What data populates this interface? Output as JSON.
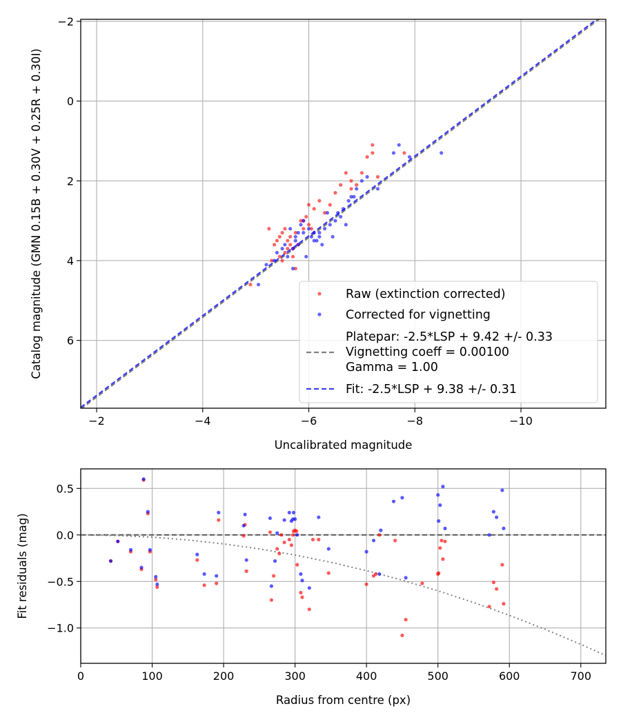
{
  "chart_data": [
    {
      "type": "scatter",
      "xlabel": "Uncalibrated magnitude",
      "ylabel": "Catalog magnitude (GMN 0.15B + 0.30V + 0.25R + 0.30I)",
      "xlim": [
        -1.7,
        -11.6
      ],
      "ylim": [
        7.7,
        -2.05
      ],
      "x_inverted": true,
      "y_inverted": true,
      "xticks": [
        -2,
        -4,
        -6,
        -8,
        -10
      ],
      "yticks": [
        -2,
        0,
        2,
        4,
        6
      ],
      "grid": true,
      "legend_position": "lower-right",
      "legend": [
        "Raw (extinction corrected)",
        "Corrected for vignetting",
        "Platepar: -2.5*LSP + 9.42 +/- 0.33",
        "Vignetting coeff = 0.00100",
        "Gamma = 1.00",
        "Fit: -2.5*LSP + 9.38 +/- 0.31"
      ],
      "colors": {
        "raw": "#ff0000",
        "corrected": "#0000ff",
        "platepar_line": "#808080",
        "fit_line": "#0000ff"
      },
      "lines": [
        {
          "name": "Platepar: -2.5*LSP + 9.42 +/- 0.33",
          "style": "dashed",
          "x": [
            -1.7,
            -11.6
          ],
          "y": [
            7.72,
            -2.18
          ]
        },
        {
          "name": "Fit: -2.5*LSP + 9.38 +/- 0.31",
          "style": "dashed",
          "x": [
            -1.7,
            -11.6
          ],
          "y": [
            7.68,
            -2.22
          ]
        }
      ],
      "series": [
        {
          "name": "Raw (extinction corrected)",
          "x": [
            -4.9,
            -5.25,
            -5.3,
            -5.35,
            -5.4,
            -5.45,
            -5.5,
            -5.5,
            -5.55,
            -5.55,
            -5.6,
            -5.65,
            -5.7,
            -5.7,
            -5.75,
            -5.75,
            -5.8,
            -5.85,
            -5.9,
            -5.95,
            -6.0,
            -6.1,
            -6.2,
            -6.3,
            -6.4,
            -6.5,
            -6.6,
            -6.7,
            -6.8,
            -6.8,
            -6.9,
            -7.0,
            -7.1,
            -7.2,
            -7.2,
            -7.3,
            -7.8,
            -5.6,
            -5.9,
            -6.0,
            -6.05,
            -5.45,
            -5.65
          ],
          "y": [
            4.6,
            3.2,
            4.0,
            3.6,
            3.5,
            3.4,
            3.3,
            4.0,
            3.2,
            3.8,
            3.5,
            3.6,
            3.7,
            3.9,
            4.2,
            3.3,
            3.6,
            3.0,
            3.0,
            2.9,
            2.6,
            2.7,
            2.5,
            2.8,
            2.6,
            2.3,
            2.1,
            1.8,
            2.0,
            2.2,
            2.1,
            1.8,
            1.4,
            1.3,
            1.1,
            1.9,
            1.3,
            3.7,
            3.2,
            3.1,
            3.2,
            3.9,
            3.4
          ]
        },
        {
          "name": "Corrected for vignetting",
          "x": [
            -5.05,
            -5.2,
            -5.35,
            -5.4,
            -5.55,
            -5.6,
            -5.65,
            -5.7,
            -5.7,
            -5.75,
            -5.8,
            -5.8,
            -5.85,
            -5.9,
            -5.9,
            -6.0,
            -6.05,
            -6.1,
            -6.15,
            -6.2,
            -6.25,
            -6.3,
            -6.35,
            -6.4,
            -6.45,
            -6.5,
            -6.55,
            -6.6,
            -6.65,
            -6.7,
            -6.75,
            -6.8,
            -6.85,
            -6.9,
            -7.0,
            -7.1,
            -7.3,
            -7.6,
            -7.7,
            -7.9,
            -8.5,
            -5.5,
            -5.95,
            -6.1,
            -5.75,
            -6.2
          ],
          "y": [
            4.6,
            4.1,
            4.0,
            3.8,
            3.6,
            3.9,
            3.2,
            3.7,
            4.2,
            3.5,
            3.6,
            3.3,
            3.1,
            3.3,
            3.0,
            3.2,
            3.4,
            3.5,
            3.5,
            3.3,
            3.6,
            3.2,
            2.8,
            3.1,
            3.4,
            3.0,
            2.8,
            2.9,
            2.7,
            3.1,
            2.5,
            2.4,
            2.4,
            2.2,
            2.0,
            1.9,
            2.2,
            1.3,
            1.1,
            1.4,
            1.3,
            3.7,
            3.9,
            3.3,
            3.4,
            3.4
          ]
        }
      ]
    },
    {
      "type": "scatter",
      "xlabel": "Radius from centre (px)",
      "ylabel": "Fit residuals (mag)",
      "xlim": [
        0,
        735
      ],
      "ylim": [
        -1.38,
        0.71
      ],
      "xticks": [
        0,
        100,
        200,
        300,
        400,
        500,
        600,
        700
      ],
      "yticks": [
        -1.0,
        -0.5,
        0.0,
        0.5
      ],
      "grid": true,
      "colors": {
        "raw": "#ff0000",
        "corrected": "#0000ff",
        "zero_line": "#404040",
        "curve": "#808080"
      },
      "lines": [
        {
          "name": "zero",
          "style": "dashed",
          "x": [
            0,
            735
          ],
          "y": [
            0,
            0
          ]
        },
        {
          "name": "vignetting curve",
          "style": "dotted",
          "x": [
            0,
            50,
            100,
            150,
            200,
            250,
            300,
            350,
            400,
            450,
            500,
            550,
            600,
            650,
            700,
            735
          ],
          "y": [
            0,
            -0.006,
            -0.024,
            -0.054,
            -0.096,
            -0.15,
            -0.216,
            -0.294,
            -0.384,
            -0.486,
            -0.6,
            -0.726,
            -0.864,
            -1.014,
            -1.176,
            -1.296
          ]
        }
      ],
      "series": [
        {
          "name": "Raw (extinction corrected)",
          "x": [
            42,
            52,
            70,
            85,
            88,
            94,
            97,
            105,
            107,
            163,
            173,
            190,
            193,
            228,
            230,
            232,
            265,
            267,
            270,
            275,
            278,
            281,
            285,
            292,
            295,
            297,
            298,
            300,
            302,
            303,
            308,
            310,
            320,
            325,
            333,
            347,
            400,
            410,
            413,
            418,
            440,
            450,
            455,
            478,
            500,
            501,
            503,
            505,
            507,
            510,
            572,
            578,
            582,
            590,
            592
          ],
          "y": [
            -0.28,
            -0.07,
            -0.18,
            -0.37,
            0.59,
            0.23,
            -0.18,
            -0.48,
            -0.56,
            -0.27,
            -0.54,
            -0.52,
            0.16,
            -0.01,
            0.11,
            -0.39,
            0.03,
            -0.7,
            -0.44,
            -0.15,
            -0.2,
            0.0,
            -0.08,
            -0.05,
            -0.11,
            0.0,
            0.04,
            0.05,
            0.04,
            -0.32,
            -0.62,
            -0.67,
            -0.8,
            -0.05,
            -0.05,
            -0.41,
            -0.53,
            -0.44,
            -0.42,
            0.0,
            -0.06,
            -1.08,
            -0.91,
            -0.52,
            -0.42,
            -0.41,
            -0.14,
            -0.06,
            -0.26,
            -0.07,
            -0.77,
            -0.51,
            -0.58,
            -0.32,
            -0.74
          ]
        },
        {
          "name": "Corrected for vignetting",
          "x": [
            42,
            52,
            70,
            85,
            88,
            94,
            97,
            105,
            107,
            163,
            173,
            190,
            193,
            228,
            230,
            232,
            265,
            267,
            272,
            275,
            285,
            292,
            295,
            297,
            298,
            300,
            303,
            308,
            310,
            320,
            333,
            347,
            400,
            410,
            418,
            420,
            438,
            450,
            455,
            500,
            501,
            503,
            507,
            510,
            572,
            578,
            582,
            590,
            592
          ],
          "y": [
            -0.28,
            -0.07,
            -0.16,
            -0.35,
            0.6,
            0.25,
            -0.16,
            -0.45,
            -0.53,
            -0.21,
            -0.42,
            -0.44,
            0.24,
            0.1,
            0.22,
            -0.27,
            0.18,
            -0.55,
            -0.28,
            0.02,
            0.16,
            0.24,
            0.15,
            0.17,
            0.24,
            0.17,
            0.0,
            -0.42,
            -0.49,
            -0.57,
            0.19,
            -0.15,
            -0.18,
            -0.06,
            -0.42,
            0.05,
            0.36,
            0.4,
            -0.46,
            0.43,
            0.15,
            0.32,
            0.52,
            0.07,
            -0.0,
            0.25,
            0.19,
            0.48,
            0.07
          ]
        }
      ]
    }
  ]
}
